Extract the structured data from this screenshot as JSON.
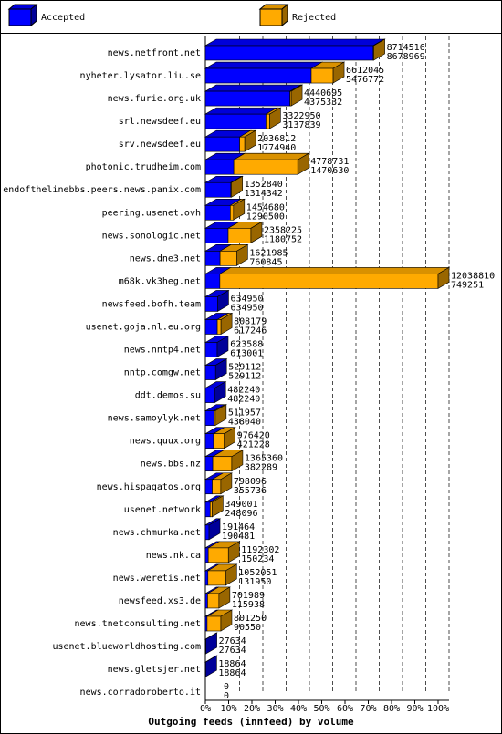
{
  "chart_data": {
    "type": "bar3d",
    "title": "Outgoing feeds (innfeed) by volume",
    "legend": [
      {
        "name": "Accepted",
        "color": "#0000ff"
      },
      {
        "name": "Rejected",
        "color": "#ffaa00"
      }
    ],
    "categories": [
      "news.netfront.net",
      "nyheter.lysator.liu.se",
      "news.furie.org.uk",
      "srl.newsdeef.eu",
      "srv.newsdeef.eu",
      "photonic.trudheim.com",
      "endofthelinebbs.peers.news.panix.com",
      "peering.usenet.ovh",
      "news.sonologic.net",
      "news.dne3.net",
      "m68k.vk3heg.net",
      "newsfeed.bofh.team",
      "usenet.goja.nl.eu.org",
      "news.nntp4.net",
      "nntp.comgw.net",
      "ddt.demos.su",
      "news.samoylyk.net",
      "news.quux.org",
      "news.bbs.nz",
      "news.hispagatos.org",
      "usenet.network",
      "news.chmurka.net",
      "news.nk.ca",
      "news.weretis.net",
      "newsfeed.xs3.de",
      "news.tnetconsulting.net",
      "usenet.blueworldhosting.com",
      "news.gletsjer.net",
      "news.corradoroberto.it"
    ],
    "totals": [
      8714516,
      6612045,
      4440695,
      3322950,
      2036812,
      4778731,
      1352840,
      1454680,
      2358225,
      1621985,
      12038810,
      634950,
      808179,
      623588,
      529112,
      482240,
      511957,
      976420,
      1365360,
      798096,
      349001,
      191464,
      1192302,
      1052051,
      701989,
      801250,
      27634,
      18864,
      0
    ],
    "accepted": [
      8678969,
      5476772,
      4375332,
      3137839,
      1774940,
      1470630,
      1314342,
      1290500,
      1180752,
      760845,
      749251,
      634950,
      617246,
      613001,
      529112,
      482240,
      438040,
      421228,
      382289,
      355736,
      248096,
      190481,
      150234,
      131950,
      115938,
      90550,
      27634,
      18864,
      0
    ],
    "xlim": [
      0,
      100
    ],
    "xticks": [
      {
        "value": 0,
        "label": "0%"
      },
      {
        "value": 10,
        "label": "10%"
      },
      {
        "value": 20,
        "label": "20%"
      },
      {
        "value": 30,
        "label": "30%"
      },
      {
        "value": 40,
        "label": "40%"
      },
      {
        "value": 50,
        "label": "50%"
      },
      {
        "value": 60,
        "label": "60%"
      },
      {
        "value": 70,
        "label": "70%"
      },
      {
        "value": 80,
        "label": "80%"
      },
      {
        "value": 90,
        "label": "90%"
      },
      {
        "value": 100,
        "label": "100%"
      }
    ],
    "grid": true
  }
}
